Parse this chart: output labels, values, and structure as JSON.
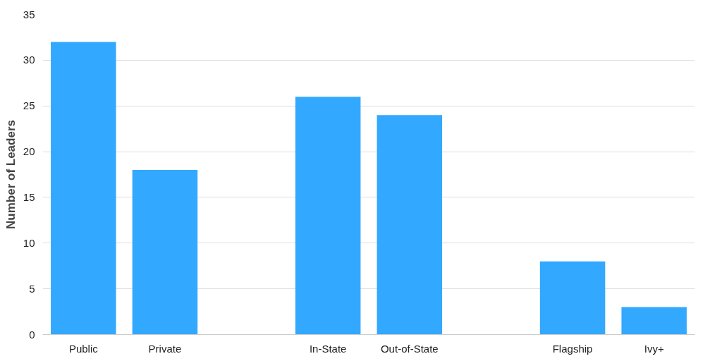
{
  "chart_data": {
    "type": "bar",
    "ylabel": "Number of Leaders",
    "categories": [
      "Public",
      "Private",
      null,
      "In-State",
      "Out-of-State",
      null,
      "Flagship",
      "Ivy+"
    ],
    "values": [
      32,
      18,
      null,
      26,
      24,
      null,
      8,
      3
    ],
    "color": "#33a8ff",
    "ylim": [
      0,
      35
    ],
    "yticks": [
      0,
      5,
      10,
      15,
      20,
      25,
      30,
      35
    ],
    "grid": "y"
  }
}
